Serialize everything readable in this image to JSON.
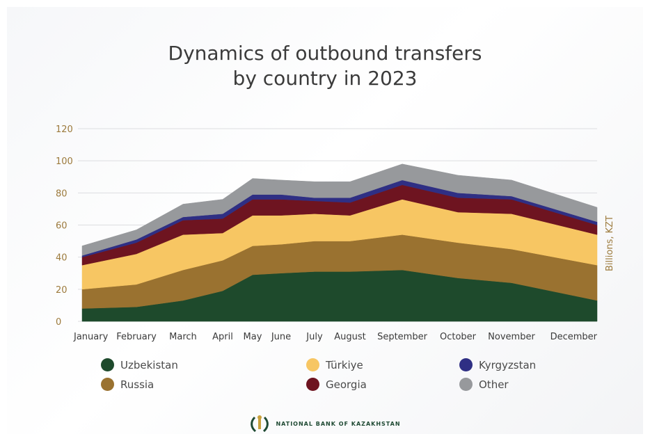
{
  "title_line1": "Dynamics of outbound transfers",
  "title_line2": "by country in 2023",
  "footer": "NATIONAL BANK OF KAZAKHSTAN",
  "chart_data": {
    "type": "area",
    "stacked": true,
    "ylabel": "Billions, KZT",
    "ylim": [
      0,
      120
    ],
    "yticks": [
      0,
      20,
      40,
      60,
      80,
      100,
      120
    ],
    "grid": true,
    "legend_position": "bottom",
    "categories": [
      "January",
      "February",
      "March",
      "April",
      "May",
      "June",
      "July",
      "August",
      "September",
      "October",
      "November",
      "December"
    ],
    "series": [
      {
        "name": "Uzbekistan",
        "color": "#1e4a2c",
        "values": [
          8,
          9,
          13,
          19,
          29,
          30,
          31,
          31,
          32,
          27,
          24,
          13
        ]
      },
      {
        "name": "Russia",
        "color": "#9a7230",
        "values": [
          12,
          14,
          19,
          19,
          18,
          18,
          19,
          19,
          22,
          22,
          21,
          22
        ]
      },
      {
        "name": "Türkiye",
        "color": "#f7c663",
        "values": [
          15,
          19,
          22,
          17,
          19,
          18,
          17,
          16,
          22,
          19,
          22,
          19
        ]
      },
      {
        "name": "Georgia",
        "color": "#6e1420",
        "values": [
          5,
          7,
          9,
          9,
          10,
          10,
          8,
          8,
          9,
          9,
          9,
          6
        ]
      },
      {
        "name": "Kyrgyzstan",
        "color": "#2f2f84",
        "values": [
          1,
          2,
          2,
          3,
          3,
          3,
          2,
          3,
          3,
          3,
          2,
          2
        ]
      },
      {
        "name": "Other",
        "color": "#97999c",
        "values": [
          6,
          6,
          8,
          9,
          10,
          9,
          10,
          10,
          10,
          11,
          10,
          9
        ]
      }
    ]
  }
}
